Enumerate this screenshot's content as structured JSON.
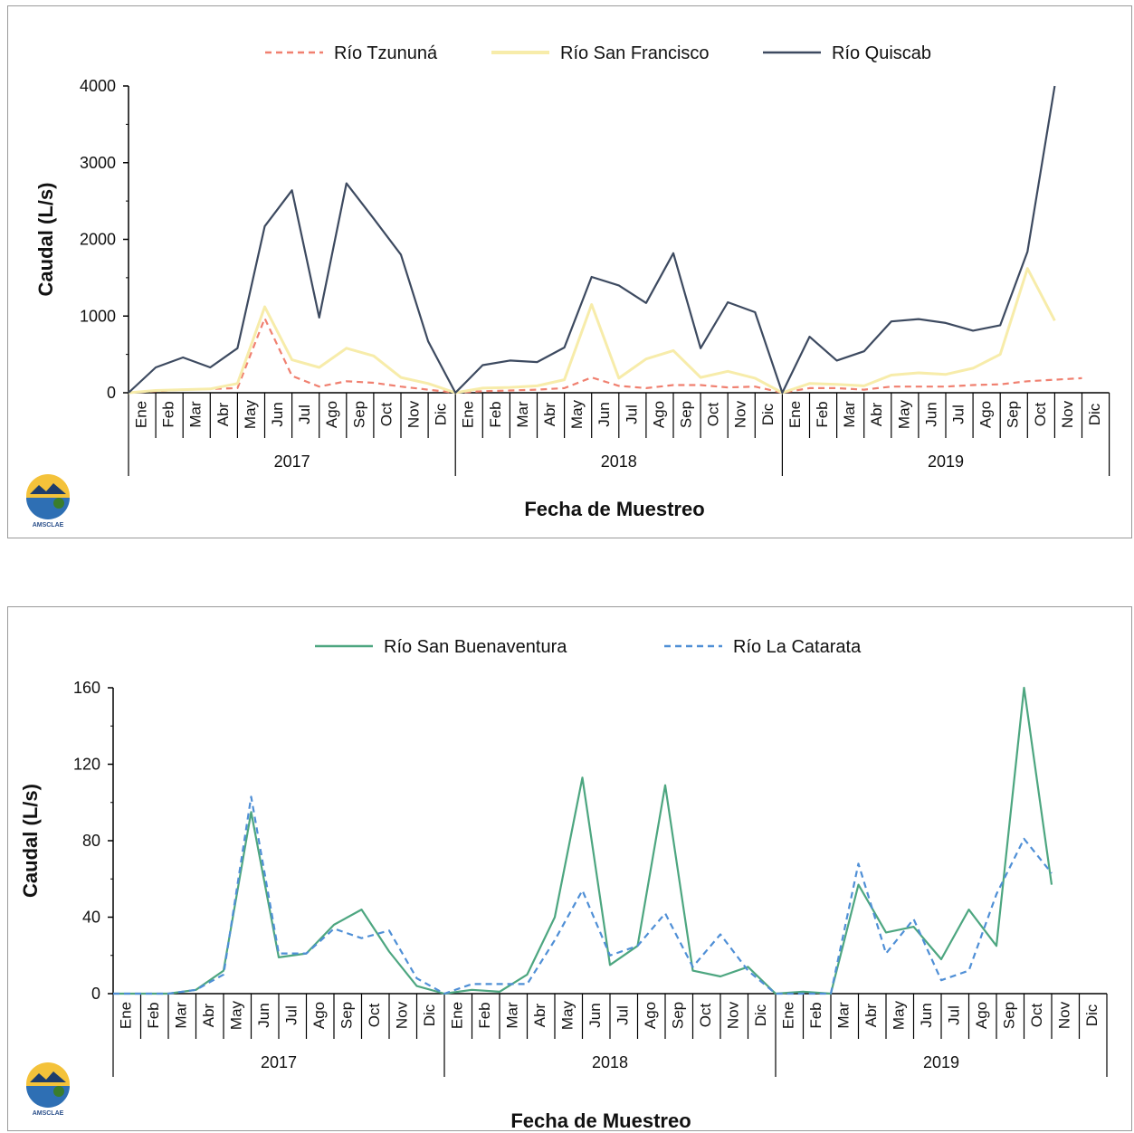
{
  "chart_data": [
    {
      "type": "line",
      "xlabel": "Fecha de Muestreo",
      "ylabel": "Caudal (L/s)",
      "ylim": [
        0,
        4000
      ],
      "yticks": [
        "0",
        "1000",
        "2000",
        "3000",
        "4000"
      ],
      "months": [
        "Ene",
        "Feb",
        "Mar",
        "Abr",
        "May",
        "Jun",
        "Jul",
        "Ago",
        "Sep",
        "Oct",
        "Nov",
        "Dic"
      ],
      "years": [
        "2017",
        "2018",
        "2019"
      ],
      "legend_position": "top",
      "grid": false,
      "series": [
        {
          "name": "Río Tzununá",
          "color": "#f08070",
          "dash": "dashed",
          "values": [
            0,
            20,
            40,
            50,
            60,
            970,
            220,
            80,
            150,
            130,
            80,
            40,
            0,
            20,
            30,
            40,
            60,
            200,
            90,
            60,
            100,
            100,
            70,
            80,
            0,
            60,
            60,
            40,
            80,
            80,
            80,
            100,
            110,
            150,
            170,
            190
          ]
        },
        {
          "name": "Río San Francisco",
          "color": "#f7ecaa",
          "dash": "solid",
          "values": [
            0,
            30,
            40,
            50,
            120,
            1120,
            430,
            330,
            580,
            480,
            200,
            120,
            0,
            60,
            70,
            90,
            170,
            1150,
            190,
            440,
            550,
            200,
            280,
            190,
            0,
            120,
            110,
            90,
            230,
            260,
            240,
            320,
            500,
            1620,
            940,
            null
          ]
        },
        {
          "name": "Río Quiscab",
          "color": "#3d4a60",
          "dash": "solid",
          "values": [
            0,
            330,
            460,
            330,
            580,
            2170,
            2640,
            980,
            2730,
            2270,
            1800,
            670,
            0,
            360,
            420,
            400,
            590,
            1510,
            1400,
            1170,
            1820,
            580,
            1180,
            1050,
            0,
            730,
            420,
            540,
            930,
            960,
            910,
            810,
            880,
            1840,
            4000,
            null
          ]
        }
      ]
    },
    {
      "type": "line",
      "xlabel": "Fecha de Muestreo",
      "ylabel": "Caudal (L/s)",
      "ylim": [
        0,
        160
      ],
      "yticks": [
        "0",
        "40",
        "80",
        "120",
        "160"
      ],
      "months": [
        "Ene",
        "Feb",
        "Mar",
        "Abr",
        "May",
        "Jun",
        "Jul",
        "Ago",
        "Sep",
        "Oct",
        "Nov",
        "Dic"
      ],
      "years": [
        "2017",
        "2018",
        "2019"
      ],
      "legend_position": "top",
      "grid": false,
      "series": [
        {
          "name": "Río San Buenaventura",
          "color": "#4da680",
          "dash": "solid",
          "values": [
            0,
            0,
            0,
            2,
            12,
            95,
            19,
            21,
            36,
            44,
            22,
            4,
            0,
            2,
            1,
            10,
            40,
            113,
            15,
            25,
            109,
            12,
            9,
            14,
            0,
            1,
            0,
            57,
            32,
            35,
            18,
            44,
            25,
            160,
            57,
            null
          ]
        },
        {
          "name": "Río La Catarata",
          "color": "#4f8fd6",
          "dash": "dashed",
          "values": [
            0,
            0,
            0,
            2,
            10,
            103,
            21,
            21,
            34,
            29,
            33,
            8,
            0,
            5,
            5,
            5,
            28,
            54,
            20,
            25,
            42,
            14,
            31,
            12,
            0,
            0,
            0,
            68,
            21,
            39,
            7,
            12,
            52,
            81,
            63,
            null
          ]
        }
      ]
    }
  ],
  "logo": {
    "text": "AMSCLAE",
    "icon": "amsclae-logo-icon"
  }
}
